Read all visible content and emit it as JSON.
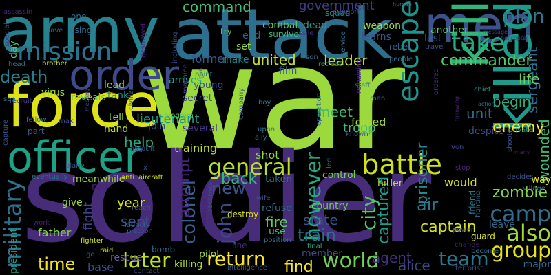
{
  "background": "#000000",
  "words": [
    {
      "text": "war",
      "color": "#9bd93c",
      "vertical": false
    },
    {
      "text": "soldier",
      "color": "#472c7a",
      "vertical": false
    },
    {
      "text": "attack",
      "color": "#2d708e",
      "vertical": false
    },
    {
      "text": "army",
      "color": "#26828e",
      "vertical": false
    },
    {
      "text": "force",
      "color": "#dde318",
      "vertical": false
    },
    {
      "text": "men",
      "color": "#3b528b",
      "vertical": false
    },
    {
      "text": "order",
      "color": "#3e4a89",
      "vertical": false
    },
    {
      "text": "officer",
      "color": "#1fa187",
      "vertical": false
    },
    {
      "text": "kill",
      "color": "#31b57b",
      "vertical": true
    },
    {
      "text": "killed",
      "color": "#1f9a8a",
      "vertical": true
    },
    {
      "text": "mission",
      "color": "#2c728e",
      "vertical": false
    },
    {
      "text": "battle",
      "color": "#d0e11c",
      "vertical": false
    },
    {
      "text": "escape",
      "color": "#20928c",
      "vertical": true
    },
    {
      "text": "general",
      "color": "#b8de29",
      "vertical": false
    },
    {
      "text": "take",
      "color": "#25ab82",
      "vertical": false
    },
    {
      "text": "death",
      "color": "#277f8e",
      "vertical": false
    },
    {
      "text": "camp",
      "color": "#2e6e8e",
      "vertical": false
    },
    {
      "text": "group",
      "color": "#e5e419",
      "vertical": false
    },
    {
      "text": "also",
      "color": "#a0da39",
      "vertical": false
    },
    {
      "text": "plan",
      "color": "#2a778e",
      "vertical": false
    },
    {
      "text": "world",
      "color": "#73d056",
      "vertical": false
    },
    {
      "text": "team",
      "color": "#2a788e",
      "vertical": false
    },
    {
      "text": "later",
      "color": "#bddf26",
      "vertical": false
    },
    {
      "text": "time",
      "color": "#f1e51d",
      "vertical": false
    },
    {
      "text": "return",
      "color": "#f8e621",
      "vertical": false
    },
    {
      "text": "military",
      "color": "#2c728e",
      "vertical": true
    },
    {
      "text": "however",
      "color": "#22a884",
      "vertical": true
    },
    {
      "text": "john",
      "color": "#3e4989",
      "vertical": true
    },
    {
      "text": "colonel",
      "color": "#355f8d",
      "vertical": true
    },
    {
      "text": "city",
      "color": "#54c568",
      "vertical": true
    },
    {
      "text": "zombie",
      "color": "#86d549",
      "vertical": false
    },
    {
      "text": "commander",
      "color": "#54c568",
      "vertical": false
    },
    {
      "text": "new",
      "color": "#3a548c",
      "vertical": false
    },
    {
      "text": "back",
      "color": "#35b779",
      "vertical": false
    },
    {
      "text": "train",
      "color": "#2d708e",
      "vertical": false
    },
    {
      "text": "captain",
      "color": "#dae319",
      "vertical": false
    },
    {
      "text": "agent",
      "color": "#46327e",
      "vertical": false
    },
    {
      "text": "alice",
      "color": "#3f4788",
      "vertical": false
    },
    {
      "text": "prisoner",
      "color": "#24878e",
      "vertical": true
    },
    {
      "text": "captured",
      "color": "#1e9d89",
      "vertical": true
    },
    {
      "text": "enemy",
      "color": "#fde725",
      "vertical": false
    },
    {
      "text": "united",
      "color": "#cae11f",
      "vertical": false
    },
    {
      "text": "leader",
      "color": "#b5de2b",
      "vertical": false
    },
    {
      "text": "command",
      "color": "#3fbc73",
      "vertical": false
    },
    {
      "text": "sergeant",
      "color": "#2e6e8e",
      "vertical": true
    },
    {
      "text": "wounded",
      "color": "#40bd72",
      "vertical": true
    },
    {
      "text": "life",
      "color": "#6ece58",
      "vertical": false
    },
    {
      "text": "begin",
      "color": "#29af7f",
      "vertical": false
    },
    {
      "text": "unit",
      "color": "#2e6d8e",
      "vertical": false
    },
    {
      "text": "meet",
      "color": "#3dbc74",
      "vertical": false
    },
    {
      "text": "help",
      "color": "#29af7f",
      "vertical": false
    },
    {
      "text": "fire",
      "color": "#5ec962",
      "vertical": false
    },
    {
      "text": "state",
      "color": "#3b528b",
      "vertical": false
    },
    {
      "text": "air",
      "color": "#2a788e",
      "vertical": false
    },
    {
      "text": "find",
      "color": "#fde725",
      "vertical": false
    },
    {
      "text": "year",
      "color": "#d8e219",
      "vertical": false
    },
    {
      "text": "sent",
      "color": "#39568c",
      "vertical": false
    },
    {
      "text": "attempt",
      "color": "#482677",
      "vertical": true
    },
    {
      "text": "fight",
      "color": "#424086",
      "vertical": true
    },
    {
      "text": "lieutenant",
      "color": "#1f958b",
      "vertical": false
    },
    {
      "text": "troop",
      "color": "#3dbc74",
      "vertical": false
    },
    {
      "text": "forced",
      "color": "#a8db34",
      "vertical": false
    },
    {
      "text": "government",
      "color": "#433d84",
      "vertical": false
    },
    {
      "text": "leave",
      "color": "#33638d",
      "vertical": false
    },
    {
      "text": "way",
      "color": "#e2e418",
      "vertical": false
    },
    {
      "text": "would",
      "color": "#d5e21a",
      "vertical": false
    },
    {
      "text": "hitler",
      "color": "#c5e021",
      "vertical": false
    },
    {
      "text": "country",
      "color": "#6ccd5a",
      "vertical": false
    },
    {
      "text": "control",
      "color": "#7ad151",
      "vertical": false
    },
    {
      "text": "training",
      "color": "#c0df25",
      "vertical": false
    },
    {
      "text": "shot",
      "color": "#8bd646",
      "vertical": false
    },
    {
      "text": "killing",
      "color": "#b2dd2d",
      "vertical": false
    },
    {
      "text": "base",
      "color": "#3e4a89",
      "vertical": false
    },
    {
      "text": "father",
      "color": "#7fd34e",
      "vertical": false
    },
    {
      "text": "major",
      "color": "#31688e",
      "vertical": false
    },
    {
      "text": "use",
      "color": "#46c06f",
      "vertical": false
    },
    {
      "text": "member",
      "color": "#3d4d8a",
      "vertical": false
    },
    {
      "text": "film",
      "color": "#39568c",
      "vertical": false
    },
    {
      "text": "former",
      "color": "#365c8d",
      "vertical": false
    },
    {
      "text": "make",
      "color": "#25858e",
      "vertical": false
    },
    {
      "text": "young",
      "color": "#3c4f8a",
      "vertical": false
    },
    {
      "text": "end",
      "color": "#33638d",
      "vertical": false
    },
    {
      "text": "set",
      "color": "#98d83e",
      "vertical": false
    },
    {
      "text": "combat",
      "color": "#5ec962",
      "vertical": false
    },
    {
      "text": "dead",
      "color": "#1fa088",
      "vertical": false
    },
    {
      "text": "weapon",
      "color": "#9fda3a",
      "vertical": false
    },
    {
      "text": "learns",
      "color": "#3a548c",
      "vertical": false
    },
    {
      "text": "another",
      "color": "#5ac864",
      "vertical": false
    },
    {
      "text": "last",
      "color": "#355e8d",
      "vertical": false
    },
    {
      "text": "squad",
      "color": "#23898e",
      "vertical": false
    },
    {
      "text": "arrives",
      "color": "#1fa187",
      "vertical": false
    },
    {
      "text": "tank",
      "color": "#21918c",
      "vertical": false
    },
    {
      "text": "lead",
      "color": "#8bd646",
      "vertical": false
    },
    {
      "text": "reveals",
      "color": "#5cc863",
      "vertical": false
    },
    {
      "text": "virus",
      "color": "#a2da37",
      "vertical": false
    },
    {
      "text": "tell",
      "color": "#a2da37",
      "vertical": false
    },
    {
      "text": "hand",
      "color": "#c2df23",
      "vertical": false
    },
    {
      "text": "join",
      "color": "#39568c",
      "vertical": false
    },
    {
      "text": "several",
      "color": "#453781",
      "vertical": false
    },
    {
      "text": "pilot",
      "color": "#a8db34",
      "vertical": false
    },
    {
      "text": "give",
      "color": "#a0da39",
      "vertical": false
    },
    {
      "text": "red",
      "color": "#482576",
      "vertical": false
    },
    {
      "text": "meanwhile",
      "color": "#a2da37",
      "vertical": false
    },
    {
      "text": "taken",
      "color": "#2c718e",
      "vertical": false
    },
    {
      "text": "refuse",
      "color": "#2d708e",
      "vertical": false
    },
    {
      "text": "president",
      "color": "#1e9b8a",
      "vertical": true
    },
    {
      "text": "day",
      "color": "#52c569",
      "vertical": true
    },
    {
      "text": "anti",
      "color": "#d2e21b",
      "vertical": false
    },
    {
      "text": "aircraft",
      "color": "#d2e21b",
      "vertical": false
    },
    {
      "text": "destroy",
      "color": "#d8e219",
      "vertical": false
    },
    {
      "text": "bomb",
      "color": "#31688e",
      "vertical": false
    },
    {
      "text": "position",
      "color": "#2d708e",
      "vertical": false
    },
    {
      "text": "guard",
      "color": "#dde318",
      "vertical": false
    },
    {
      "text": "final",
      "color": "#25ab82",
      "vertical": false
    },
    {
      "text": "friend",
      "color": "#2a788e",
      "vertical": true
    },
    {
      "text": "people",
      "color": "#2e6f8e",
      "vertical": false
    },
    {
      "text": "son",
      "color": "#2d708e",
      "vertical": false
    },
    {
      "text": "fellow",
      "color": "#2c728e",
      "vertical": false
    },
    {
      "text": "max",
      "color": "#3f4788",
      "vertical": false
    },
    {
      "text": "part",
      "color": "#365d8d",
      "vertical": false
    },
    {
      "text": "capture",
      "color": "#3a548c",
      "vertical": true
    },
    {
      "text": "recruit",
      "color": "#453781",
      "vertical": false
    },
    {
      "text": "see",
      "color": "#2c728e",
      "vertical": false
    },
    {
      "text": "special",
      "color": "#433e85",
      "vertical": true
    },
    {
      "text": "head",
      "color": "#2d708e",
      "vertical": false
    },
    {
      "text": "brother",
      "color": "#c8e020",
      "vertical": false
    },
    {
      "text": "assassin",
      "color": "#472a7a",
      "vertical": false
    },
    {
      "text": "one",
      "color": "#2f6c8e",
      "vertical": false
    },
    {
      "text": "using",
      "color": "#2f6c8e",
      "vertical": false
    },
    {
      "text": "save",
      "color": "#2d708e",
      "vertical": false
    },
    {
      "text": "destroyed",
      "color": "#482475",
      "vertical": true
    },
    {
      "text": "including",
      "color": "#3d4e8a",
      "vertical": true
    },
    {
      "text": "try",
      "color": "#6ece58",
      "vertical": false
    },
    {
      "text": "human",
      "color": "#2e6f8e",
      "vertical": false
    },
    {
      "text": "support",
      "color": "#3b528b",
      "vertical": false
    },
    {
      "text": "rebel",
      "color": "#31688e",
      "vertical": false
    },
    {
      "text": "survivor",
      "color": "#3dbc74",
      "vertical": false
    },
    {
      "text": "missile",
      "color": "#453781",
      "vertical": false
    },
    {
      "text": "helicopter",
      "color": "#424086",
      "vertical": false
    },
    {
      "text": "message",
      "color": "#3e4a89",
      "vertical": false
    },
    {
      "text": "travel",
      "color": "#3b528b",
      "vertical": false
    },
    {
      "text": "service",
      "color": "#2b748e",
      "vertical": true
    },
    {
      "text": "retreat",
      "color": "#1f9e89",
      "vertical": false
    },
    {
      "text": "remaining",
      "color": "#482979",
      "vertical": true
    },
    {
      "text": "ordered",
      "color": "#46337f",
      "vertical": true
    },
    {
      "text": "staff",
      "color": "#2c728e",
      "vertical": false
    },
    {
      "text": "man",
      "color": "#2d708e",
      "vertical": false
    },
    {
      "text": "chief",
      "color": "#1e9c89",
      "vertical": false
    },
    {
      "text": "action",
      "color": "#2e6f8e",
      "vertical": false
    },
    {
      "text": "following",
      "color": "#482677",
      "vertical": true
    },
    {
      "text": "private",
      "color": "#1e9b8a",
      "vertical": false
    },
    {
      "text": "shoot",
      "color": "#3b528b",
      "vertical": true
    },
    {
      "text": "many",
      "color": "#481f70",
      "vertical": false
    },
    {
      "text": "von",
      "color": "#3e4989",
      "vertical": false
    },
    {
      "text": "stop",
      "color": "#482677",
      "vertical": false
    },
    {
      "text": "decides",
      "color": "#3b528b",
      "vertical": false
    },
    {
      "text": "village",
      "color": "#2a788e",
      "vertical": false
    },
    {
      "text": "fighting",
      "color": "#2e6e8e",
      "vertical": true
    },
    {
      "text": "power",
      "color": "#3b528b",
      "vertical": false
    },
    {
      "text": "change",
      "color": "#482173",
      "vertical": false
    },
    {
      "text": "become",
      "color": "#2a788e",
      "vertical": false
    },
    {
      "text": "terrorist",
      "color": "#3e4a89",
      "vertical": false
    },
    {
      "text": "intelligence",
      "color": "#3b528b",
      "vertical": false
    },
    {
      "text": "contact",
      "color": "#3b528b",
      "vertical": false
    },
    {
      "text": "fighter",
      "color": "#cde11d",
      "vertical": false
    },
    {
      "text": "raid",
      "color": "#cde11d",
      "vertical": false
    },
    {
      "text": "rescue",
      "color": "#6b5ba4",
      "vertical": false
    },
    {
      "text": "wife",
      "color": "#3b528b",
      "vertical": false
    },
    {
      "text": "line",
      "color": "#482677",
      "vertical": false
    },
    {
      "text": "work",
      "color": "#481f70",
      "vertical": false
    },
    {
      "text": "platoon",
      "color": "#355f8d",
      "vertical": false
    },
    {
      "text": "launch",
      "color": "#355f8d",
      "vertical": false
    },
    {
      "text": "reach",
      "color": "#3b528b",
      "vertical": false
    },
    {
      "text": "eventually",
      "color": "#2a788e",
      "vertical": false
    },
    {
      "text": "plane",
      "color": "#3b528b",
      "vertical": false
    },
    {
      "text": "assault",
      "color": "#3b528b",
      "vertical": false
    },
    {
      "text": "program",
      "color": "#5ec962",
      "vertical": false
    },
    {
      "text": "civilian",
      "color": "#2e6e8e",
      "vertical": true
    },
    {
      "text": "meeting",
      "color": "#3e4a89",
      "vertical": true
    },
    {
      "text": "secret",
      "color": "#3e4a89",
      "vertical": false
    },
    {
      "text": "point",
      "color": "#2a788e",
      "vertical": false
    },
    {
      "text": "boy",
      "color": "#2a788e",
      "vertical": false
    },
    {
      "text": "upon",
      "color": "#2a788e",
      "vertical": false
    },
    {
      "text": "ally",
      "color": "#2a788e",
      "vertical": false
    },
    {
      "text": "known",
      "color": "#3b528b",
      "vertical": false
    },
    {
      "text": "company",
      "color": "#3b528b",
      "vertical": true
    },
    {
      "text": "operation",
      "color": "#2e6e8e",
      "vertical": true
    },
    {
      "text": "led",
      "color": "#2e6e8e",
      "vertical": true
    },
    {
      "text": "becomes",
      "color": "#3b528b",
      "vertical": true
    },
    {
      "text": "resistance",
      "color": "#481f70",
      "vertical": true
    },
    {
      "text": "despite",
      "color": "#3e4a89",
      "vertical": false
    },
    {
      "text": "machine",
      "color": "#3e4a89",
      "vertical": true
    },
    {
      "text": "gun",
      "color": "#3e4a89",
      "vertical": true
    },
    {
      "text": "go",
      "color": "#3b528b",
      "vertical": false
    },
    {
      "text": "x",
      "color": "#3b528b",
      "vertical": false
    }
  ]
}
